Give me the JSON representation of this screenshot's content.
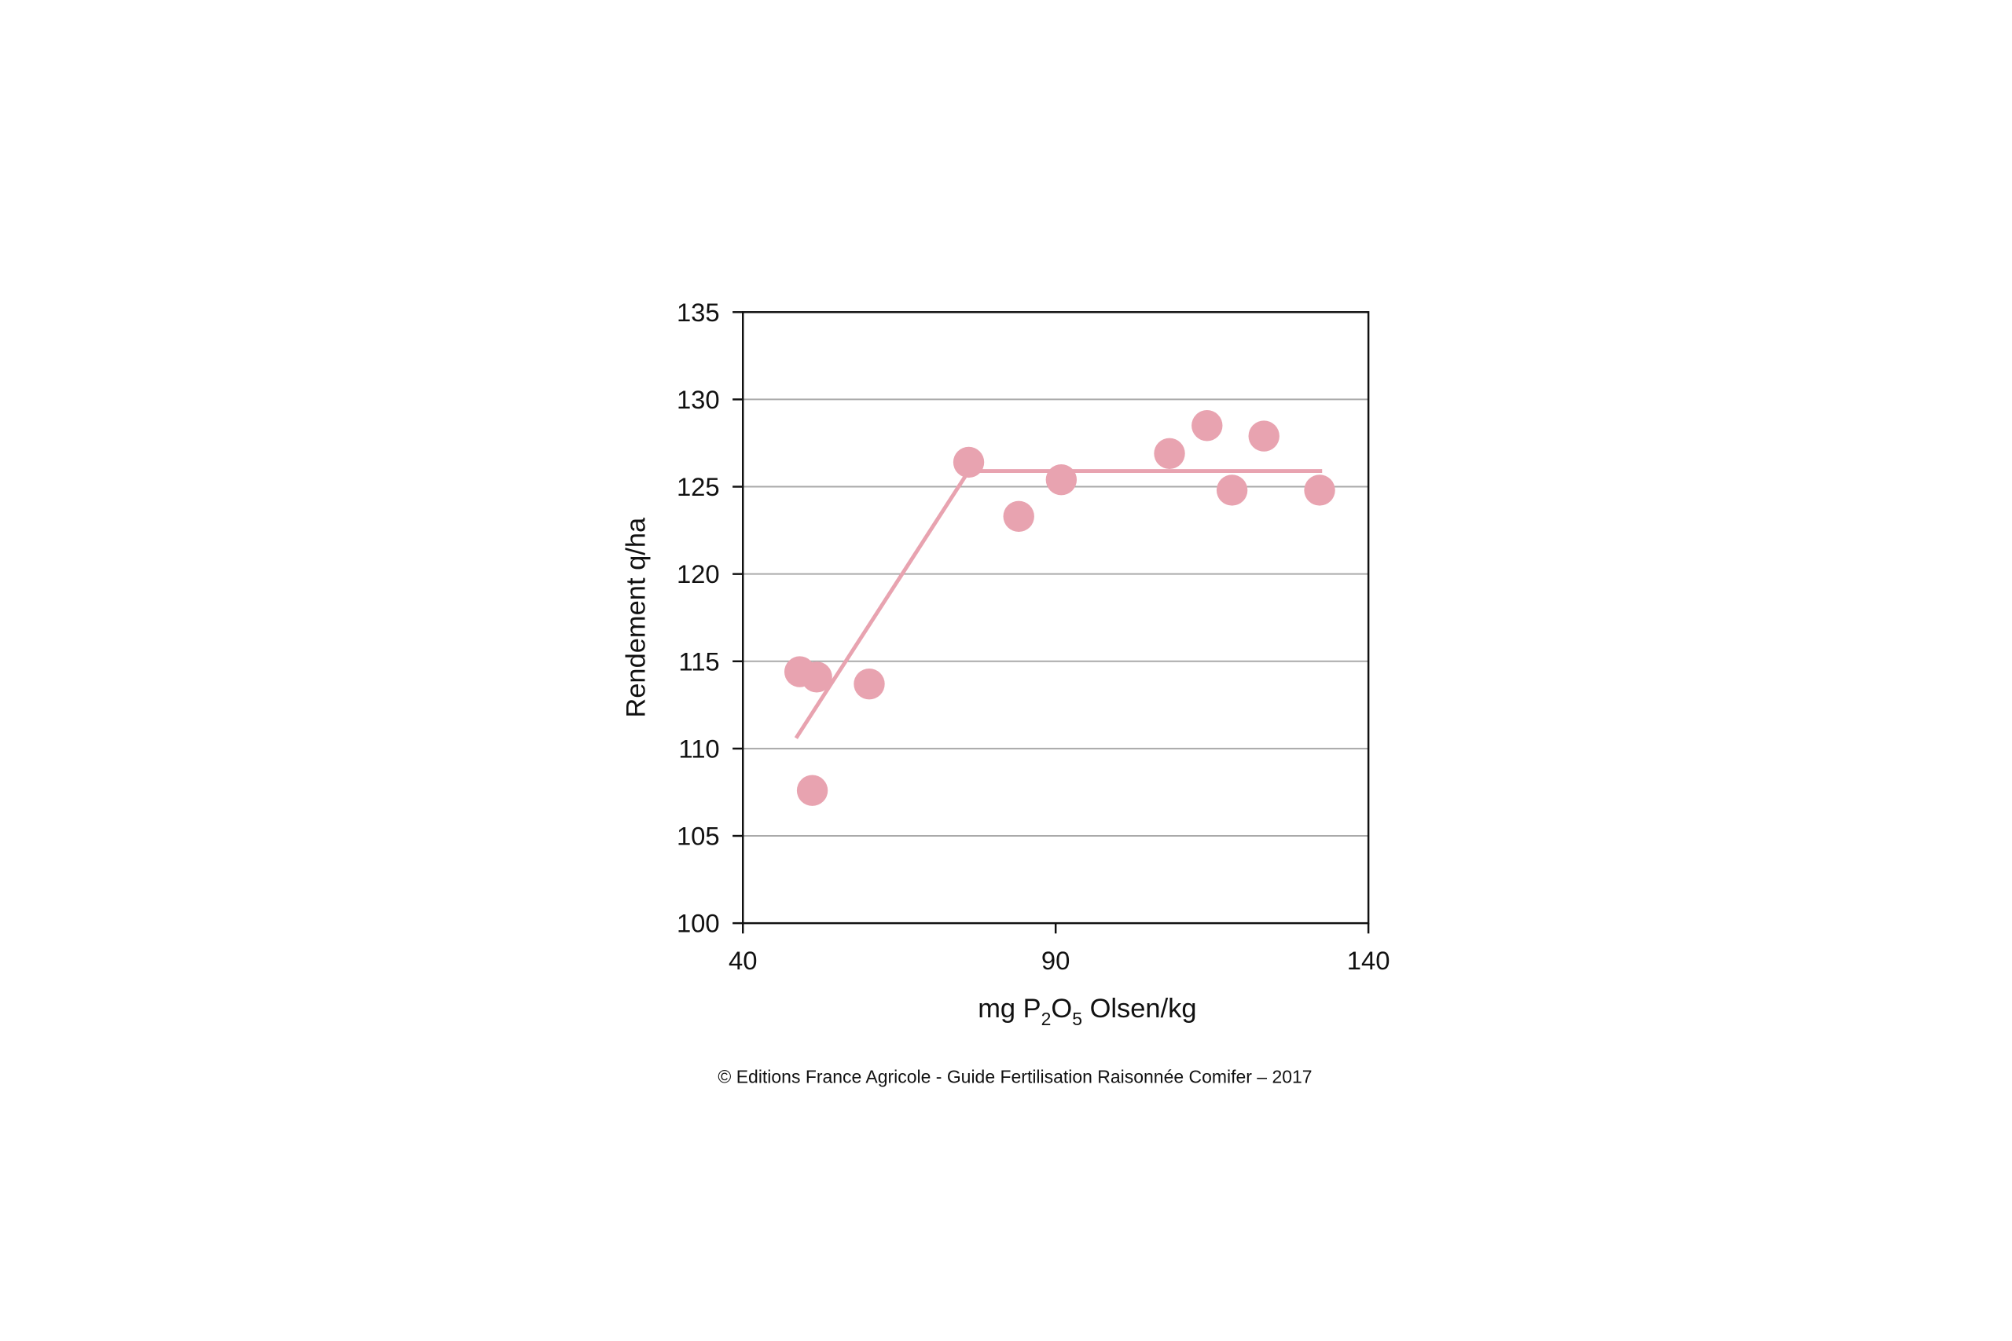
{
  "chart_data": {
    "type": "scatter",
    "y_label": "Rendement q/ha",
    "x_label": [
      "mg P",
      "2",
      "O",
      "5",
      " Olsen/kg"
    ],
    "source": "© Editions France Agricole - Guide Fertilisation Raisonnée Comifer – 2017",
    "xlim": [
      40,
      140
    ],
    "xticks": [
      40,
      90,
      140
    ],
    "ylim": [
      100,
      135
    ],
    "yticks": [
      100,
      105,
      110,
      115,
      120,
      125,
      130,
      135
    ],
    "grid": true,
    "series": [
      {
        "type": "scatter",
        "color": "#e8a3b0",
        "x": [
          49.1,
          51.8,
          51.1,
          60.2,
          76.1,
          84.1,
          90.9,
          108.2,
          114.2,
          118.2,
          123.3,
          132.2
        ],
        "values": [
          114.4,
          114.1,
          107.6,
          113.7,
          126.4,
          123.3,
          125.4,
          126.9,
          128.5,
          124.8,
          127.9,
          124.8
        ]
      },
      {
        "type": "line",
        "color": "#e8a3b0",
        "x": [
          48.5,
          76.1,
          132.6
        ],
        "values": [
          110.6,
          125.9,
          125.9
        ]
      }
    ]
  }
}
